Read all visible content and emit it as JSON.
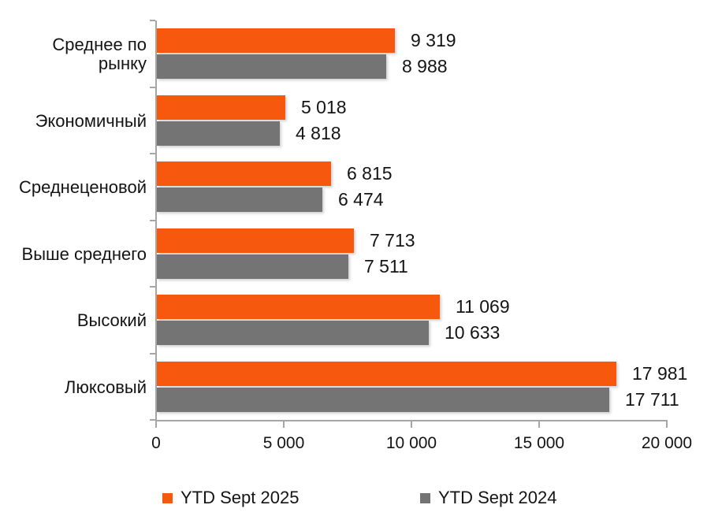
{
  "chart_data": {
    "type": "bar",
    "orientation": "horizontal",
    "title": "",
    "xlabel": "",
    "ylabel": "",
    "categories": [
      "Среднее по рынку",
      "Экономичный",
      "Среднеценовой",
      "Выше среднего",
      "Высокий",
      "Люксовый"
    ],
    "series": [
      {
        "name": "YTD Sept 2025",
        "color": "#F6590D",
        "values": [
          9319,
          5018,
          6815,
          7713,
          11069,
          17981
        ],
        "labels": [
          "9 319",
          "5 018",
          "6 815",
          "7 713",
          "11 069",
          "17 981"
        ]
      },
      {
        "name": "YTD Sept 2024",
        "color": "#747474",
        "values": [
          8988,
          4818,
          6474,
          7511,
          10633,
          17711
        ],
        "labels": [
          "8 988",
          "4 818",
          "6 474",
          "7 511",
          "10 633",
          "17 711"
        ]
      }
    ],
    "xlim": [
      0,
      20000
    ],
    "x_ticks": [
      {
        "value": 0,
        "label": "0"
      },
      {
        "value": 5000,
        "label": "5 000"
      },
      {
        "value": 10000,
        "label": "10 000"
      },
      {
        "value": 15000,
        "label": "15 000"
      },
      {
        "value": 20000,
        "label": "20 000"
      }
    ],
    "grid": false,
    "legend_position": "bottom",
    "axis_color": "#A6A6A6",
    "text_color": "#141414"
  },
  "legend": {
    "items": [
      {
        "label": "YTD Sept 2025",
        "color": "#F6590D"
      },
      {
        "label": "YTD Sept 2024",
        "color": "#747474"
      }
    ]
  }
}
